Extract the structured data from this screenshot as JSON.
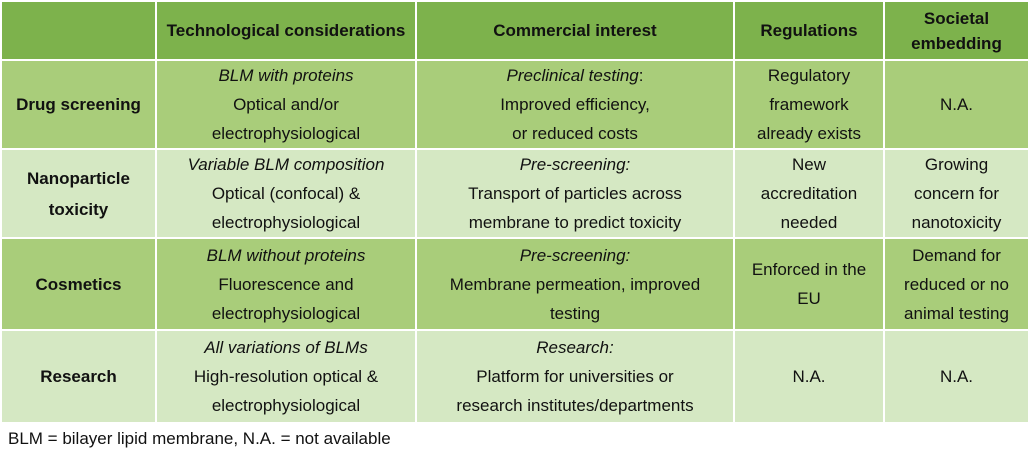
{
  "headers": [
    "",
    "Technological considerations",
    "Commercial interest",
    "Regulations",
    "Societal embedding"
  ],
  "rows": [
    {
      "label": "Drug screening",
      "tech_title": "BLM with proteins",
      "tech_body": "Optical and/or electrophysiological",
      "comm_title": "Preclinical testing",
      "comm_colon": ":",
      "comm_body_1": "Improved efficiency,",
      "comm_body_2": "or reduced costs",
      "regulations": "Regulatory framework already exists",
      "societal": "N.A."
    },
    {
      "label": "Nanoparticle toxicity",
      "tech_title": "Variable BLM composition",
      "tech_body": "Optical (confocal) & electrophysiological",
      "comm_title": "Pre-screening:",
      "comm_colon": "",
      "comm_body_1": "Transport of particles across",
      "comm_body_2": "membrane to predict toxicity",
      "regulations": "New accreditation needed",
      "societal": "Growing concern for nanotoxicity"
    },
    {
      "label": "Cosmetics",
      "tech_title": "BLM without proteins",
      "tech_body": "Fluorescence and electrophysiological",
      "comm_title": "Pre-screening:",
      "comm_colon": "",
      "comm_body_1": "Membrane permeation, improved",
      "comm_body_2": "testing",
      "regulations": "Enforced in the EU",
      "societal": "Demand for reduced or no animal testing"
    },
    {
      "label": "Research",
      "tech_title": "All variations of BLMs",
      "tech_body": "High-resolution optical & electrophysiological",
      "comm_title": "Research:",
      "comm_colon": "",
      "comm_body_1": "Platform for universities or",
      "comm_body_2": "research institutes/departments",
      "regulations": "N.A.",
      "societal": "N.A."
    }
  ],
  "footnote": "BLM = bilayer lipid membrane, N.A. = not available",
  "colors": {
    "header": "#7db24c",
    "row_dark": "#a9cd7a",
    "row_light": "#d5e8c3"
  }
}
